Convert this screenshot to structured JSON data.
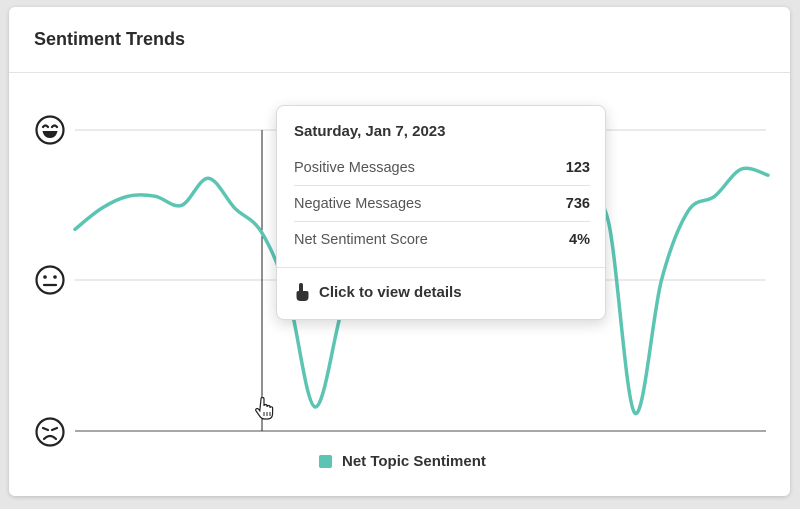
{
  "card": {
    "title": "Sentiment Trends"
  },
  "legend": {
    "label": "Net Topic Sentiment",
    "color": "#5cc4b3"
  },
  "yaxis_icons": [
    "happy-face-icon",
    "neutral-face-icon",
    "sad-face-icon"
  ],
  "tooltip": {
    "date": "Saturday, Jan 7, 2023",
    "rows": [
      {
        "label": "Positive Messages",
        "value": "123"
      },
      {
        "label": "Negative Messages",
        "value": "736"
      },
      {
        "label": "Net Sentiment Score",
        "value": "4%"
      }
    ],
    "action_label": "Click to view details"
  },
  "chart_data": {
    "type": "line",
    "series": [
      {
        "name": "Net Topic Sentiment",
        "color": "#5cc4b3",
        "values": [
          0.67,
          0.74,
          0.78,
          0.78,
          0.75,
          0.84,
          0.74,
          0.66,
          0.45,
          0.08,
          0.4,
          0.7,
          0.68,
          0.66,
          0.68,
          0.66,
          0.7,
          0.66,
          0.72,
          0.76,
          0.7,
          0.06,
          0.5,
          0.73,
          0.78,
          0.87,
          0.85
        ]
      }
    ],
    "ylim": [
      0,
      1
    ],
    "grid": true,
    "legend_position": "bottom"
  }
}
